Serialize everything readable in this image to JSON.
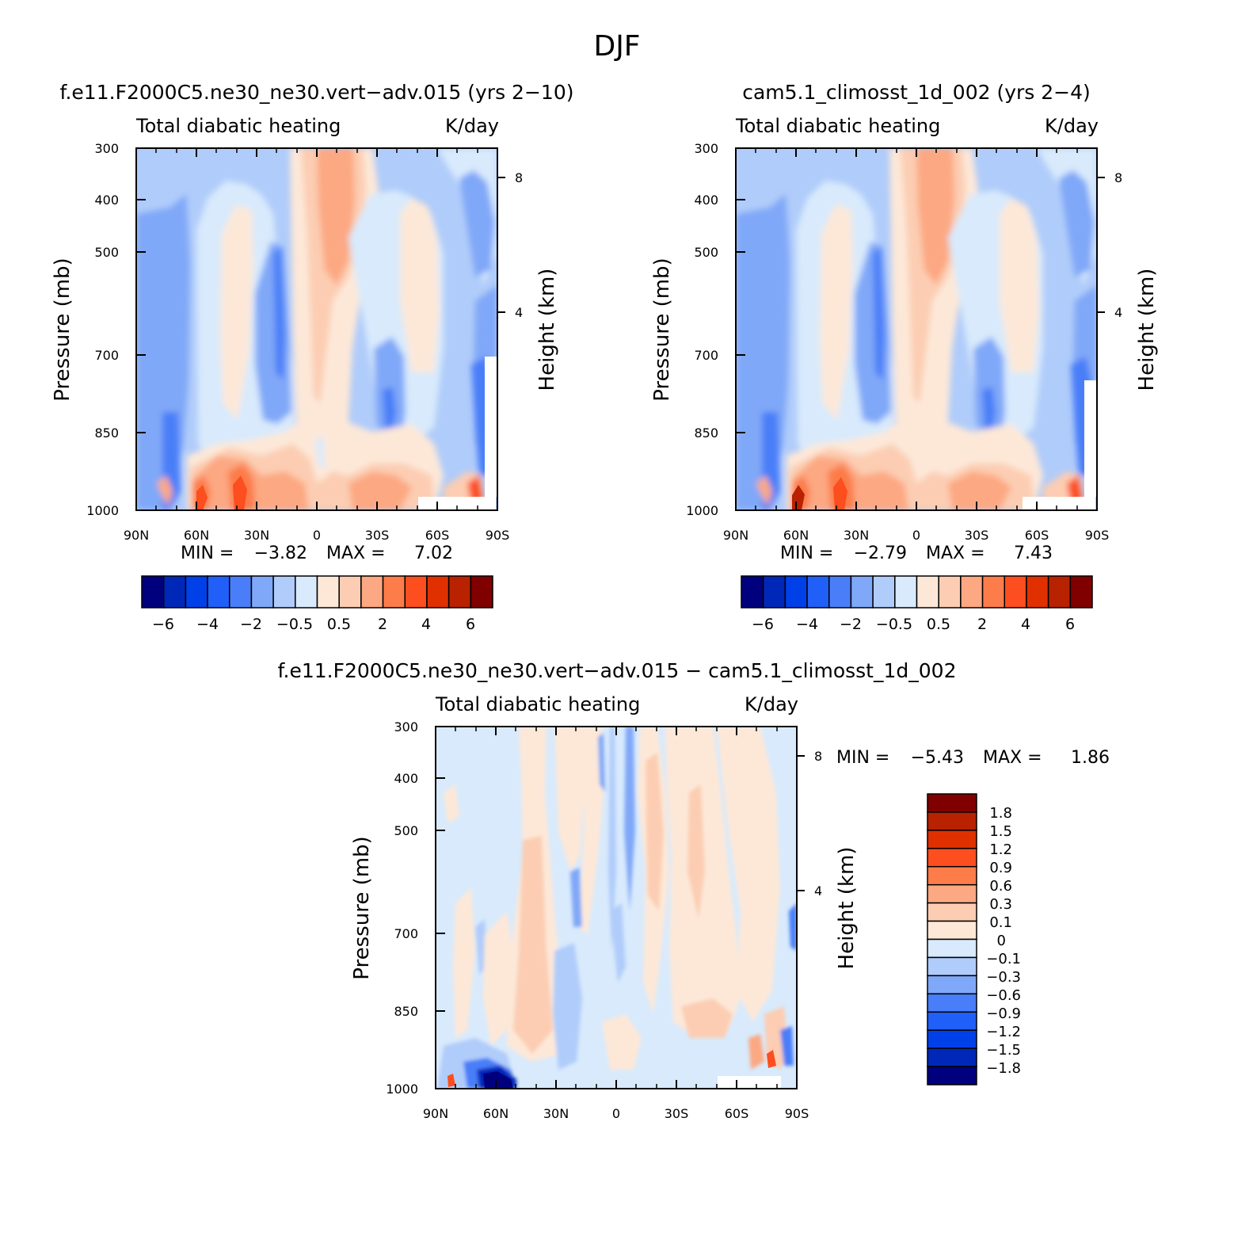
{
  "figure": {
    "title": "DJF"
  },
  "chart_data": [
    {
      "type": "heatmap",
      "title": "f.e11.F2000C5.ne30_ne30.vert−adv.015 (yrs 2−10)",
      "subtitle_left": "Total diabatic heating",
      "subtitle_right": "K/day",
      "xlabel": "",
      "ylabel": "Pressure (mb)",
      "ylabel_right": "Height (km)",
      "x_ticklabels": [
        "90N",
        "60N",
        "30N",
        "0",
        "30S",
        "60S",
        "90S"
      ],
      "y_ticklabels": [
        "300",
        "400",
        "500",
        "700",
        "850",
        "1000"
      ],
      "y_right_ticklabels": [
        "8",
        "4"
      ],
      "ylim": [
        1000,
        300
      ],
      "xlim": [
        90,
        -90
      ],
      "stats": {
        "min_label": "MIN =",
        "min": "−3.82",
        "max_label": "MAX =",
        "max": "7.02"
      },
      "colorbar": {
        "orientation": "horizontal",
        "colors": [
          "#00007f",
          "#0028b8",
          "#0040e8",
          "#2060f8",
          "#4a7ef8",
          "#80a8f8",
          "#b0ccfa",
          "#d8eafc",
          "#fde8d8",
          "#fccdb2",
          "#fca882",
          "#fc7c4a",
          "#fc4e1e",
          "#e03000",
          "#b82200",
          "#800000"
        ],
        "labels": [
          "−6",
          "−4",
          "−2",
          "−0.5",
          "0.5",
          "2",
          "4",
          "6"
        ]
      }
    },
    {
      "type": "heatmap",
      "title": "cam5.1_climosst_1d_002 (yrs 2−4)",
      "subtitle_left": "Total diabatic heating",
      "subtitle_right": "K/day",
      "xlabel": "",
      "ylabel": "Pressure (mb)",
      "ylabel_right": "Height (km)",
      "x_ticklabels": [
        "90N",
        "60N",
        "30N",
        "0",
        "30S",
        "60S",
        "90S"
      ],
      "y_ticklabels": [
        "300",
        "400",
        "500",
        "700",
        "850",
        "1000"
      ],
      "y_right_ticklabels": [
        "8",
        "4"
      ],
      "ylim": [
        1000,
        300
      ],
      "xlim": [
        90,
        -90
      ],
      "stats": {
        "min_label": "MIN =",
        "min": "−2.79",
        "max_label": "MAX =",
        "max": "7.43"
      },
      "colorbar": {
        "orientation": "horizontal",
        "colors": [
          "#00007f",
          "#0028b8",
          "#0040e8",
          "#2060f8",
          "#4a7ef8",
          "#80a8f8",
          "#b0ccfa",
          "#d8eafc",
          "#fde8d8",
          "#fccdb2",
          "#fca882",
          "#fc7c4a",
          "#fc4e1e",
          "#e03000",
          "#b82200",
          "#800000"
        ],
        "labels": [
          "−6",
          "−4",
          "−2",
          "−0.5",
          "0.5",
          "2",
          "4",
          "6"
        ]
      }
    },
    {
      "type": "heatmap",
      "title": "f.e11.F2000C5.ne30_ne30.vert−adv.015 − cam5.1_climosst_1d_002",
      "subtitle_left": "Total diabatic heating",
      "subtitle_right": "K/day",
      "xlabel": "",
      "ylabel": "Pressure (mb)",
      "ylabel_right": "Height (km)",
      "x_ticklabels": [
        "90N",
        "60N",
        "30N",
        "0",
        "30S",
        "60S",
        "90S"
      ],
      "y_ticklabels": [
        "300",
        "400",
        "500",
        "700",
        "850",
        "1000"
      ],
      "y_right_ticklabels": [
        "8",
        "4"
      ],
      "ylim": [
        1000,
        300
      ],
      "xlim": [
        90,
        -90
      ],
      "stats": {
        "min_label": "MIN =",
        "min": "−5.43",
        "max_label": "MAX =",
        "max": "1.86"
      },
      "colorbar": {
        "orientation": "vertical",
        "colors": [
          "#00007f",
          "#0028b8",
          "#0040e8",
          "#2060f8",
          "#4a7ef8",
          "#80a8f8",
          "#b0ccfa",
          "#d8eafc",
          "#fde8d8",
          "#fccdb2",
          "#fca882",
          "#fc7c4a",
          "#fc4e1e",
          "#e03000",
          "#b82200",
          "#800000"
        ],
        "labels": [
          "1.8",
          "1.5",
          "1.2",
          "0.9",
          "0.6",
          "0.3",
          "0.1",
          "0",
          "−0.1",
          "−0.3",
          "−0.6",
          "−0.9",
          "−1.2",
          "−1.5",
          "−1.8"
        ]
      }
    }
  ]
}
